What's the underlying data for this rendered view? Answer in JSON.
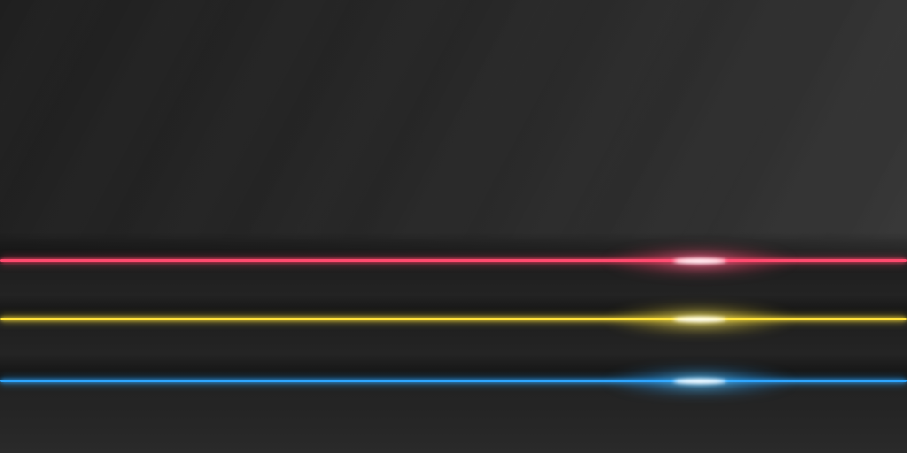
{
  "scene": {
    "background_colors": [
      "#1f1f1f",
      "#2e2e2e",
      "#3a3a3a"
    ],
    "lines": [
      {
        "name": "red-neon-line",
        "color": "#ff4a6e",
        "glow_color": "#ff6f9a"
      },
      {
        "name": "yellow-neon-line",
        "color": "#ffe23a",
        "glow_color": "#fff17a"
      },
      {
        "name": "blue-neon-line",
        "color": "#2ea6ff",
        "glow_color": "#6cd0ff"
      }
    ]
  }
}
